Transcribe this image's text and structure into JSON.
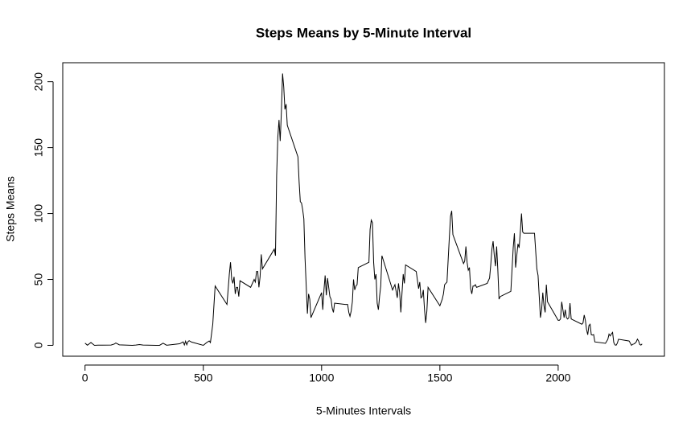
{
  "chart_data": {
    "type": "line",
    "title": "Steps Means by 5-Minute Interval",
    "x_label": "5-Minutes Intervals",
    "y_label": "Steps Means",
    "color": "#000000",
    "x": [
      0,
      10,
      25,
      40,
      55,
      110,
      125,
      130,
      145,
      200,
      215,
      230,
      245,
      300,
      315,
      330,
      345,
      400,
      415,
      420,
      425,
      430,
      435,
      440,
      450,
      500,
      515,
      525,
      530,
      540,
      550,
      600,
      610,
      615,
      620,
      625,
      630,
      635,
      640,
      645,
      650,
      655,
      700,
      715,
      720,
      725,
      730,
      735,
      740,
      745,
      750,
      800,
      805,
      810,
      815,
      820,
      825,
      830,
      835,
      840,
      845,
      850,
      855,
      900,
      905,
      910,
      915,
      920,
      925,
      930,
      935,
      940,
      945,
      950,
      955,
      1000,
      1005,
      1010,
      1015,
      1020,
      1025,
      1030,
      1035,
      1040,
      1045,
      1050,
      1055,
      1100,
      1110,
      1115,
      1120,
      1125,
      1130,
      1135,
      1140,
      1145,
      1150,
      1155,
      1200,
      1205,
      1210,
      1215,
      1220,
      1225,
      1230,
      1235,
      1240,
      1245,
      1250,
      1255,
      1300,
      1310,
      1320,
      1325,
      1330,
      1335,
      1340,
      1345,
      1350,
      1355,
      1400,
      1410,
      1415,
      1420,
      1425,
      1430,
      1435,
      1440,
      1445,
      1450,
      1500,
      1510,
      1515,
      1520,
      1525,
      1530,
      1535,
      1540,
      1545,
      1550,
      1555,
      1600,
      1605,
      1610,
      1615,
      1620,
      1625,
      1630,
      1635,
      1640,
      1645,
      1650,
      1655,
      1700,
      1710,
      1715,
      1720,
      1725,
      1730,
      1735,
      1740,
      1745,
      1750,
      1755,
      1800,
      1810,
      1815,
      1820,
      1825,
      1830,
      1835,
      1840,
      1845,
      1850,
      1855,
      1900,
      1910,
      1915,
      1920,
      1925,
      1930,
      1935,
      1940,
      1945,
      1950,
      1955,
      2000,
      2005,
      2010,
      2015,
      2020,
      2025,
      2030,
      2035,
      2040,
      2045,
      2050,
      2055,
      2100,
      2105,
      2110,
      2115,
      2120,
      2125,
      2130,
      2135,
      2140,
      2145,
      2150,
      2155,
      2200,
      2210,
      2215,
      2220,
      2225,
      2230,
      2235,
      2240,
      2245,
      2250,
      2255,
      2300,
      2310,
      2315,
      2320,
      2325,
      2330,
      2335,
      2340,
      2345,
      2350,
      2355
    ],
    "values": [
      1.7,
      0.1,
      2.1,
      0,
      0.1,
      0.2,
      1.1,
      1.8,
      0.4,
      0,
      0.2,
      0.6,
      0.2,
      0,
      0,
      1.6,
      0.1,
      1.2,
      2.6,
      0.3,
      3.1,
      0.4,
      2.7,
      3.5,
      2.5,
      0,
      2.2,
      3.3,
      2.1,
      16,
      45,
      31,
      54,
      63,
      50,
      47,
      52,
      39,
      44,
      44,
      37,
      49,
      44,
      50,
      48,
      56,
      56,
      44,
      52,
      69,
      58,
      73,
      68,
      129,
      158,
      171,
      155,
      177,
      206.2,
      196,
      179,
      183,
      167,
      143,
      124,
      109,
      108,
      103,
      96,
      66,
      45,
      24,
      39,
      35,
      21,
      40,
      27,
      42,
      53,
      38,
      51,
      44,
      37,
      35,
      28,
      25,
      32,
      31,
      31,
      25,
      22,
      26,
      33,
      50,
      42,
      45,
      46,
      59,
      63,
      88,
      95,
      93,
      63,
      50,
      54,
      32,
      27,
      37,
      45,
      68,
      42,
      46,
      36,
      47,
      40,
      25,
      40,
      54,
      47,
      61,
      56,
      43,
      48,
      36,
      37,
      42,
      27,
      17,
      26,
      44,
      30,
      35,
      39,
      46,
      47,
      48,
      65,
      82,
      98,
      102,
      84,
      62,
      64,
      75,
      63,
      57,
      59,
      43,
      39,
      45,
      45,
      46,
      44,
      47,
      51,
      61,
      73,
      79,
      68,
      60,
      75,
      57,
      35,
      37,
      41,
      74,
      85,
      59,
      68,
      77,
      74,
      86,
      100,
      86,
      85,
      85,
      58,
      53,
      37,
      21,
      27,
      40,
      30,
      25,
      46,
      33,
      19,
      19,
      20,
      33,
      27,
      21,
      27,
      21,
      20,
      21,
      32,
      20,
      16,
      17,
      23,
      19,
      12,
      8,
      15,
      16,
      8,
      7.8,
      8.1,
      2.6,
      1.5,
      4.6,
      8.5,
      7.1,
      8.7,
      9.8,
      2.2,
      0.3,
      0.1,
      1.6,
      4.6,
      3.3,
      0,
      0.8,
      1,
      1.6,
      2.6,
      4.7,
      3.3,
      0.6,
      0.2,
      1.1
    ],
    "xlim": [
      -94.2,
      2449.2
    ],
    "ylim": [
      -8.25,
      214.42
    ],
    "xticks": [
      0,
      500,
      1000,
      1500,
      2000
    ],
    "yticks": [
      0,
      50,
      100,
      150,
      200
    ]
  }
}
